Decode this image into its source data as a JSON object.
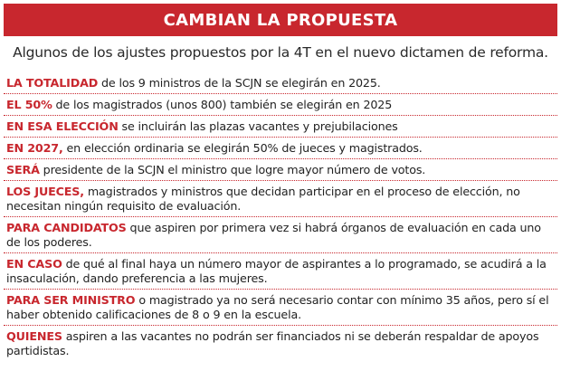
{
  "header": {
    "title": "CAMBIAN LA PROPUESTA",
    "subtitle": "Algunos de los ajustes propuestos por la 4T en el nuevo dictamen de reforma."
  },
  "items": [
    {
      "lead": "LA TOTALIDAD",
      "text": " de los 9 ministros de la SCJN se elegirán en 2025."
    },
    {
      "lead": "EL 50%",
      "text": " de los magistrados (unos 800) también se elegirán en 2025"
    },
    {
      "lead": "EN ESA ELECCIÓN",
      "text": " se incluirán las plazas vacantes y prejubilaciones"
    },
    {
      "lead": "EN 2027,",
      "text": " en elección ordinaria se elegirán 50% de jueces y magistrados."
    },
    {
      "lead": "SERÁ",
      "text": " presidente de la SCJN el ministro que logre mayor número de votos."
    },
    {
      "lead": "LOS JUECES,",
      "text": " magistrados y ministros que decidan participar en el proceso de elección, no necesitan ningún requisito de evaluación."
    },
    {
      "lead": "PARA CANDIDATOS",
      "text": " que aspiren por primera vez si habrá órganos de evaluación en cada uno de los poderes."
    },
    {
      "lead": "EN CASO",
      "text": " de qué al final haya un número mayor de aspirantes a lo programado, se acudirá a la insaculación, dando preferencia a las mujeres."
    },
    {
      "lead": "PARA SER MINISTRO",
      "text": " o magistrado ya no será necesario contar con mínimo 35 años, pero sí el haber obtenido calificaciones de 8 o 9 en la escuela."
    },
    {
      "lead": "QUIENES",
      "text": " aspiren a las vacantes no podrán ser financiados ni se deberán respaldar de apoyos partidistas."
    }
  ]
}
